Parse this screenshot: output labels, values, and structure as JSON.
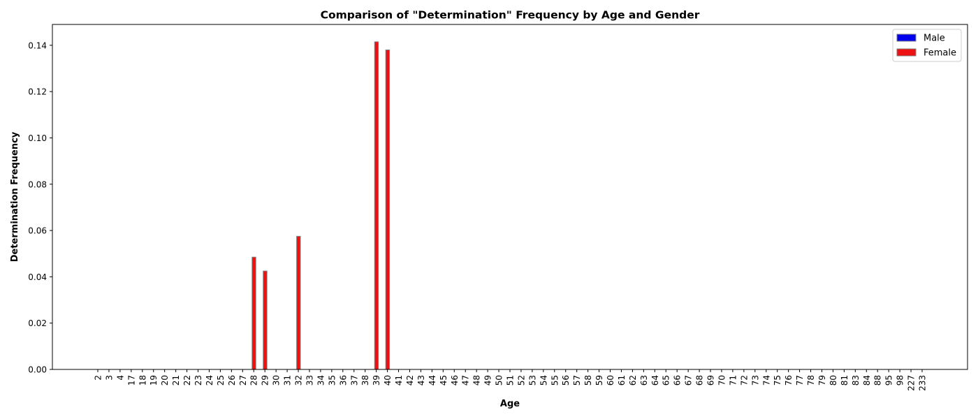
{
  "chart_data": {
    "type": "bar",
    "title": "Comparison of \"Determination\" Frequency by Age and Gender",
    "xlabel": "Age",
    "ylabel": "Determination Frequency",
    "ylim": [
      0,
      0.149
    ],
    "yticks": [
      "0.00",
      "0.02",
      "0.04",
      "0.06",
      "0.08",
      "0.10",
      "0.12",
      "0.14"
    ],
    "categories": [
      "2",
      "3",
      "4",
      "17",
      "18",
      "19",
      "20",
      "21",
      "22",
      "23",
      "24",
      "25",
      "26",
      "27",
      "28",
      "29",
      "30",
      "31",
      "32",
      "33",
      "34",
      "35",
      "36",
      "37",
      "38",
      "39",
      "40",
      "41",
      "42",
      "43",
      "44",
      "45",
      "46",
      "47",
      "48",
      "49",
      "50",
      "51",
      "52",
      "53",
      "54",
      "55",
      "56",
      "57",
      "58",
      "59",
      "60",
      "61",
      "62",
      "63",
      "64",
      "65",
      "66",
      "67",
      "68",
      "69",
      "70",
      "71",
      "72",
      "73",
      "74",
      "75",
      "76",
      "77",
      "78",
      "79",
      "80",
      "81",
      "83",
      "84",
      "88",
      "95",
      "98",
      "227",
      "233"
    ],
    "series": [
      {
        "name": "Male",
        "color": "#0000ee",
        "values": [
          0,
          0,
          0,
          0,
          0,
          0,
          0,
          0,
          0,
          0,
          0,
          0,
          0,
          0,
          0,
          0,
          0,
          0,
          0,
          0,
          0,
          0,
          0,
          0,
          0,
          0,
          0,
          0,
          0,
          0,
          0,
          0,
          0,
          0,
          0,
          0,
          0,
          0,
          0,
          0,
          0,
          0,
          0,
          0,
          0,
          0,
          0,
          0,
          0,
          0,
          0,
          0,
          0,
          0,
          0,
          0,
          0,
          0,
          0,
          0,
          0,
          0,
          0,
          0,
          0,
          0,
          0,
          0,
          0,
          0,
          0,
          0,
          0,
          0,
          0
        ]
      },
      {
        "name": "Female",
        "color": "#ee1111",
        "values": [
          0,
          0,
          0,
          0,
          0,
          0,
          0,
          0,
          0,
          0,
          0,
          0,
          0,
          0,
          0.0485,
          0.0425,
          0,
          0,
          0.0575,
          0,
          0,
          0,
          0,
          0,
          0,
          0.1415,
          0.138,
          0,
          0,
          0,
          0,
          0,
          0,
          0,
          0,
          0,
          0,
          0,
          0,
          0,
          0,
          0,
          0,
          0,
          0,
          0,
          0,
          0,
          0,
          0,
          0,
          0,
          0,
          0,
          0,
          0,
          0,
          0,
          0,
          0,
          0,
          0,
          0,
          0,
          0,
          0,
          0,
          0,
          0,
          0,
          0,
          0,
          0,
          0,
          0
        ]
      }
    ],
    "legend": "top-right",
    "grid": false
  }
}
